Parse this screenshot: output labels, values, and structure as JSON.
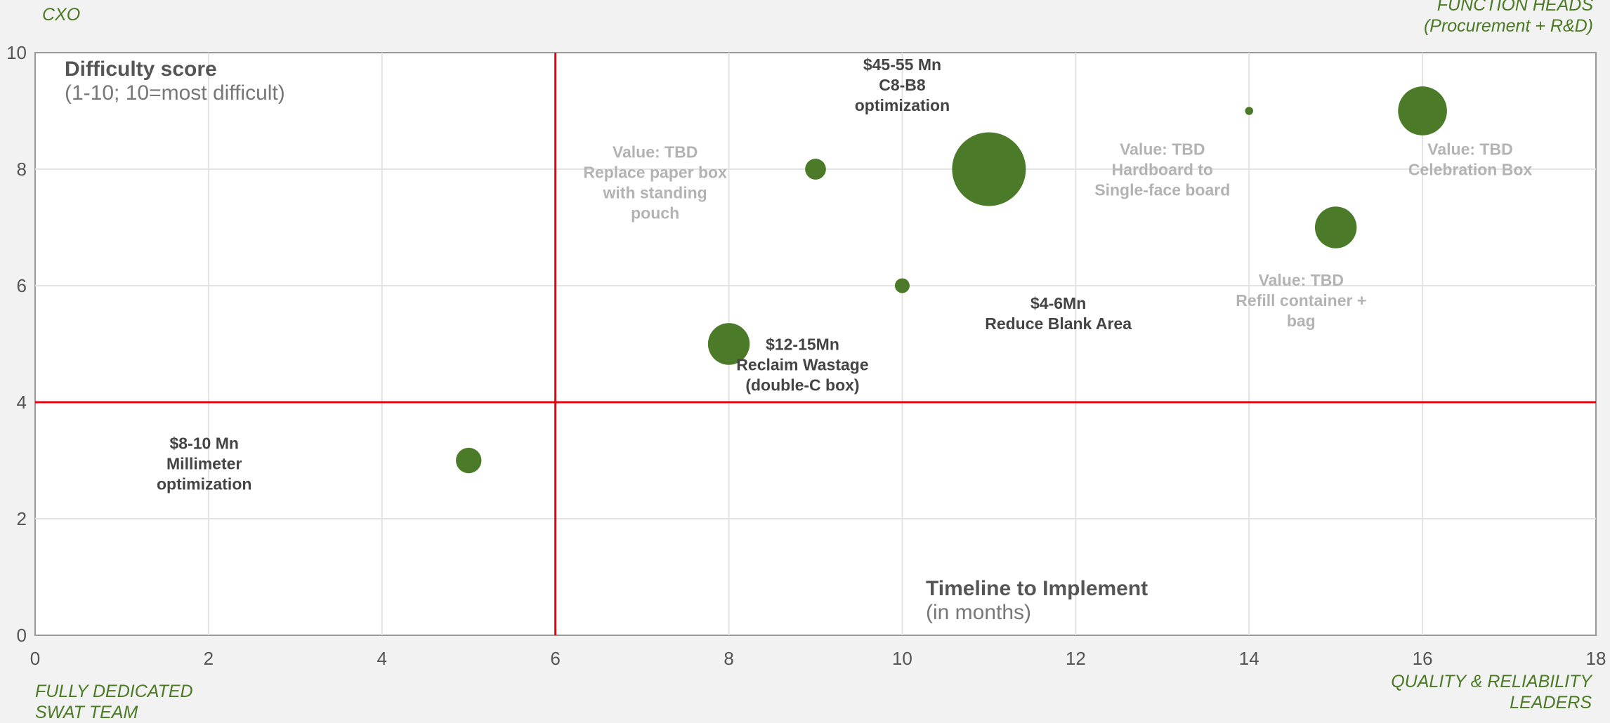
{
  "corners": {
    "top_left": [
      "CXO"
    ],
    "top_right": [
      "FUNCTION HEADS",
      "(Procurement + R&D)"
    ],
    "bottom_left": [
      "FULLY DEDICATED",
      "SWAT TEAM"
    ],
    "bottom_right": [
      "QUALITY & RELIABILITY",
      "LEADERS"
    ]
  },
  "chart_data": {
    "type": "bubble",
    "title": "",
    "ylabel": [
      "Difficulty score",
      "(1-10; 10=most difficult)"
    ],
    "xlabel": [
      "Timeline to Implement",
      "(in months)"
    ],
    "xlim": [
      0,
      18
    ],
    "ylim": [
      0,
      10
    ],
    "xticks": [
      0,
      2,
      4,
      6,
      8,
      10,
      12,
      14,
      16,
      18
    ],
    "yticks": [
      0,
      2,
      4,
      6,
      8,
      10
    ],
    "grid": true,
    "bubble_color": "#4b7a28",
    "quadrant_line_color": "#e8000b",
    "quadrant_lines": {
      "x": 6,
      "y": 4
    },
    "points": [
      {
        "x": 5,
        "y": 3,
        "size": 3,
        "label": [
          "$8-10 Mn",
          "Millimeter",
          "optimization"
        ],
        "valued": true
      },
      {
        "x": 8,
        "y": 5,
        "size": 8,
        "label": [
          "$12-15Mn",
          "Reclaim Wastage",
          "(double-C box)"
        ],
        "valued": true
      },
      {
        "x": 9,
        "y": 8,
        "size": 2,
        "label": [
          "Value: TBD",
          "Replace paper box",
          "with standing",
          "pouch"
        ],
        "valued": false
      },
      {
        "x": 10,
        "y": 6,
        "size": 1,
        "label": [
          "$4-6Mn",
          "Reduce Blank Area"
        ],
        "valued": true
      },
      {
        "x": 11,
        "y": 8,
        "size": 25,
        "label": [
          "$45-55 Mn",
          "C8-B8",
          "optimization"
        ],
        "valued": true
      },
      {
        "x": 14,
        "y": 9,
        "size": 0.3,
        "label": [
          "Value: TBD",
          "Hardboard to",
          "Single-face board"
        ],
        "valued": false
      },
      {
        "x": 15,
        "y": 7,
        "size": 8,
        "label": [
          "Value: TBD",
          "Refill container +",
          "bag"
        ],
        "valued": false
      },
      {
        "x": 16,
        "y": 9,
        "size": 11,
        "label": [
          "Value: TBD",
          "Celebration Box"
        ],
        "valued": false
      }
    ]
  }
}
